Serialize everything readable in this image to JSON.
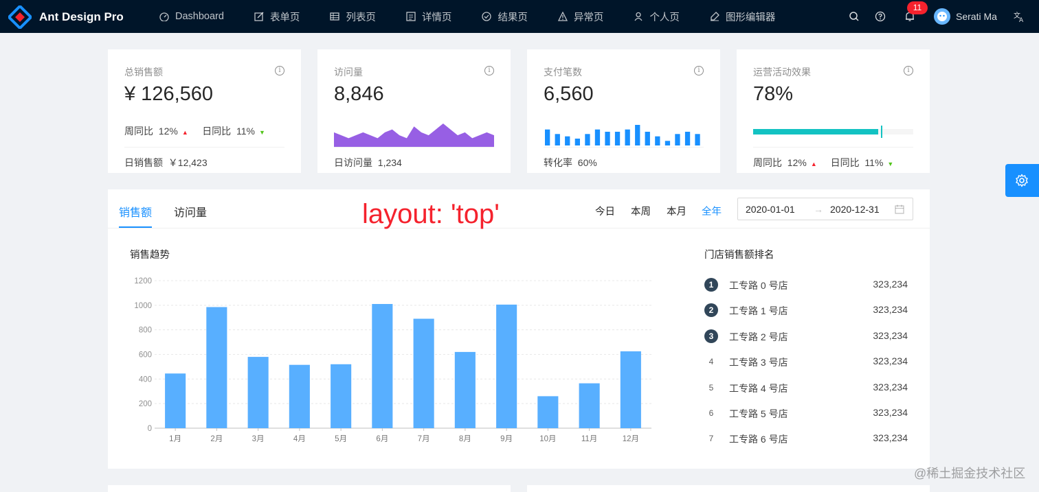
{
  "header": {
    "brand": "Ant Design Pro",
    "menu": [
      "Dashboard",
      "表单页",
      "列表页",
      "详情页",
      "结果页",
      "异常页",
      "个人页",
      "图形编辑器"
    ],
    "notification_count": "11",
    "user_name": "Serati Ma",
    "colors": {
      "bg": "#001529",
      "badge": "#f5222d"
    }
  },
  "cards": [
    {
      "title": "总销售额",
      "value": "¥ 126,560",
      "trend_week_label": "周同比",
      "trend_week_value": "12%",
      "trend_day_label": "日同比",
      "trend_day_value": "11%",
      "footer_label": "日销售额",
      "footer_value": "￥12,423"
    },
    {
      "title": "访问量",
      "value": "8,846",
      "footer_label": "日访问量",
      "footer_value": "1,234",
      "mini_area": [
        4,
        3,
        2,
        3,
        4,
        3,
        2,
        4,
        5,
        3,
        2,
        6,
        4,
        3,
        5,
        7,
        5,
        3,
        4,
        2,
        3,
        4,
        3
      ],
      "area_color": "#975fe4"
    },
    {
      "title": "支付笔数",
      "value": "6,560",
      "footer_label": "转化率",
      "footer_value": "60%",
      "mini_bars": [
        7,
        5,
        4,
        3,
        5,
        7,
        6,
        6,
        7,
        9,
        6,
        4,
        2,
        5,
        6,
        5
      ],
      "bar_color": "#1890ff"
    },
    {
      "title": "运营活动效果",
      "value": "78%",
      "progress": 78,
      "progress_target": 80,
      "progress_color": "#13c2c2",
      "trend_week_label": "周同比",
      "trend_week_value": "12%",
      "trend_day_label": "日同比",
      "trend_day_value": "11%"
    }
  ],
  "sales": {
    "tabs": [
      "销售额",
      "访问量"
    ],
    "ranges": [
      "今日",
      "本周",
      "本月",
      "全年"
    ],
    "active_range": "全年",
    "date_start": "2020-01-01",
    "date_end": "2020-12-31",
    "date_separator": "→",
    "annotation": "layout: 'top'",
    "chart_title": "销售趋势",
    "ranking_title": "门店销售额排名",
    "ranking": [
      {
        "no": "1",
        "name": "工专路 0 号店",
        "value": "323,234"
      },
      {
        "no": "2",
        "name": "工专路 1 号店",
        "value": "323,234"
      },
      {
        "no": "3",
        "name": "工专路 2 号店",
        "value": "323,234"
      },
      {
        "no": "4",
        "name": "工专路 3 号店",
        "value": "323,234"
      },
      {
        "no": "5",
        "name": "工专路 4 号店",
        "value": "323,234"
      },
      {
        "no": "6",
        "name": "工专路 5 号店",
        "value": "323,234"
      },
      {
        "no": "7",
        "name": "工专路 6 号店",
        "value": "323,234"
      }
    ]
  },
  "chart_data": {
    "type": "bar",
    "title": "销售趋势",
    "categories": [
      "1月",
      "2月",
      "3月",
      "4月",
      "5月",
      "6月",
      "7月",
      "8月",
      "9月",
      "10月",
      "11月",
      "12月"
    ],
    "values": [
      445,
      985,
      580,
      515,
      520,
      1010,
      890,
      620,
      1005,
      260,
      365,
      625
    ],
    "ylim": [
      0,
      1200
    ],
    "yticks": [
      0,
      200,
      400,
      600,
      800,
      1000,
      1200
    ],
    "bar_color": "#58afff",
    "grid": true
  },
  "watermark": "@稀土掘金技术社区"
}
